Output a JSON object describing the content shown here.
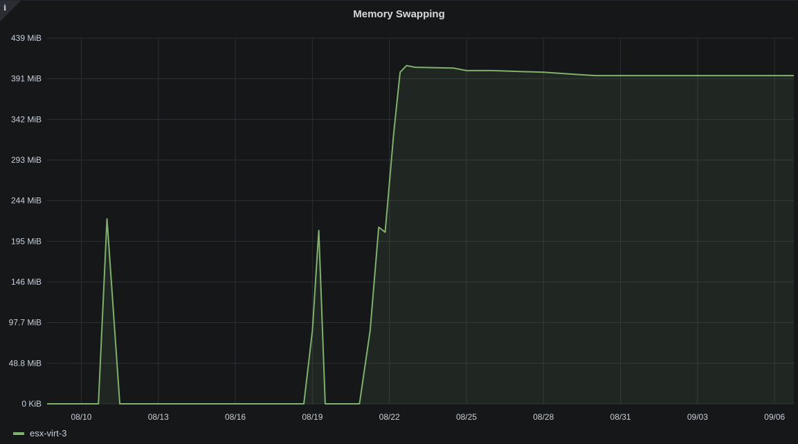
{
  "panel": {
    "info_icon": "info-icon",
    "title": "Memory Swapping"
  },
  "colors": {
    "background": "#161719",
    "grid": "#2c2f36",
    "series": "#7eb26d",
    "fill": "#1f2620",
    "text": "#c7d0d9"
  },
  "chart_data": {
    "type": "area",
    "title": "Memory Swapping",
    "xlabel": "",
    "ylabel": "",
    "x_ticks": [
      "08/10",
      "08/13",
      "08/16",
      "08/19",
      "08/22",
      "08/25",
      "08/28",
      "08/31",
      "09/03",
      "09/06"
    ],
    "y_ticks": [
      "0 KiB",
      "48.8 MiB",
      "97.7 MiB",
      "146 MiB",
      "195 MiB",
      "244 MiB",
      "293 MiB",
      "342 MiB",
      "391 MiB",
      "439 MiB"
    ],
    "ylim": [
      0,
      439
    ],
    "xlim": [
      "08/08 16:00",
      "09/06 18:00"
    ],
    "grid": true,
    "legend_position": "bottom-left",
    "series": [
      {
        "name": "esx-virt-3",
        "color": "#7eb26d",
        "points": [
          {
            "x": "08/08 16:00",
            "y": 0
          },
          {
            "x": "08/10 16:00",
            "y": 0
          },
          {
            "x": "08/11 00:00",
            "y": 222
          },
          {
            "x": "08/11 12:00",
            "y": 0
          },
          {
            "x": "08/18 16:00",
            "y": 0
          },
          {
            "x": "08/19 00:00",
            "y": 88
          },
          {
            "x": "08/19 06:00",
            "y": 208
          },
          {
            "x": "08/19 12:00",
            "y": 0
          },
          {
            "x": "08/20 20:00",
            "y": 0
          },
          {
            "x": "08/21 06:00",
            "y": 88
          },
          {
            "x": "08/21 14:00",
            "y": 212
          },
          {
            "x": "08/21 20:00",
            "y": 206
          },
          {
            "x": "08/22 04:00",
            "y": 325
          },
          {
            "x": "08/22 10:00",
            "y": 398
          },
          {
            "x": "08/22 16:00",
            "y": 406
          },
          {
            "x": "08/23 00:00",
            "y": 404
          },
          {
            "x": "08/24 12:00",
            "y": 403
          },
          {
            "x": "08/25 00:00",
            "y": 400
          },
          {
            "x": "08/26 00:00",
            "y": 400
          },
          {
            "x": "08/27 00:00",
            "y": 399
          },
          {
            "x": "08/28 00:00",
            "y": 398
          },
          {
            "x": "08/29 00:00",
            "y": 396
          },
          {
            "x": "08/30 00:00",
            "y": 394
          },
          {
            "x": "08/31 00:00",
            "y": 394
          },
          {
            "x": "09/03 00:00",
            "y": 394
          },
          {
            "x": "09/06 18:00",
            "y": 394
          }
        ]
      }
    ]
  },
  "legend": {
    "items": [
      {
        "label": "esx-virt-3"
      }
    ]
  }
}
